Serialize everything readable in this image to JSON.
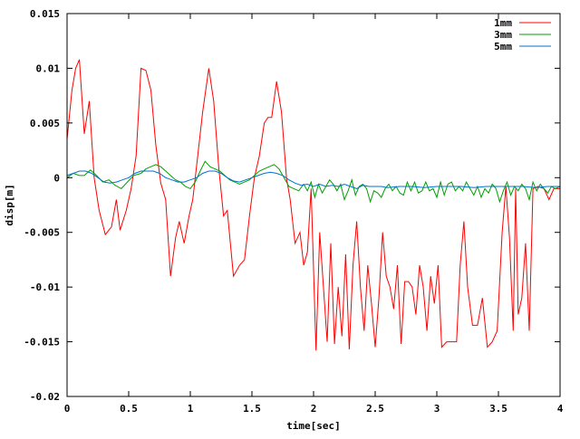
{
  "chart_data": {
    "type": "line",
    "title": "",
    "xlabel": "time[sec]",
    "ylabel": "disp[m]",
    "xlim": [
      0,
      4
    ],
    "ylim": [
      -0.02,
      0.015
    ],
    "grid": false,
    "legend_placement": "top-right",
    "x_ticks": [
      0,
      0.5,
      1,
      1.5,
      2,
      2.5,
      3,
      3.5,
      4
    ],
    "x_tick_labels": [
      "0",
      "0.5",
      "1",
      "1.5",
      "2",
      "2.5",
      "3",
      "3.5",
      "4"
    ],
    "y_ticks": [
      -0.02,
      -0.015,
      -0.01,
      -0.005,
      0,
      0.005,
      0.01,
      0.015
    ],
    "y_tick_labels": [
      "-0.02",
      "-0.015",
      "-0.01",
      "-0.005",
      "0",
      "0.005",
      "0.01",
      "0.015"
    ],
    "series": [
      {
        "name": "1mm",
        "color": "#ff0000",
        "points": [
          [
            0.0,
            0.0035
          ],
          [
            0.04,
            0.008
          ],
          [
            0.07,
            0.01
          ],
          [
            0.1,
            0.0108
          ],
          [
            0.14,
            0.004
          ],
          [
            0.18,
            0.007
          ],
          [
            0.22,
            0.0
          ],
          [
            0.26,
            -0.003
          ],
          [
            0.31,
            -0.0052
          ],
          [
            0.36,
            -0.0045
          ],
          [
            0.4,
            -0.002
          ],
          [
            0.43,
            -0.0048
          ],
          [
            0.48,
            -0.003
          ],
          [
            0.52,
            -0.001
          ],
          [
            0.56,
            0.002
          ],
          [
            0.6,
            0.01
          ],
          [
            0.64,
            0.0098
          ],
          [
            0.68,
            0.008
          ],
          [
            0.72,
            0.003
          ],
          [
            0.76,
            -0.0005
          ],
          [
            0.8,
            -0.002
          ],
          [
            0.84,
            -0.009
          ],
          [
            0.88,
            -0.0055
          ],
          [
            0.91,
            -0.004
          ],
          [
            0.95,
            -0.006
          ],
          [
            0.99,
            -0.0035
          ],
          [
            1.02,
            -0.002
          ],
          [
            1.06,
            0.002
          ],
          [
            1.1,
            0.006
          ],
          [
            1.15,
            0.01
          ],
          [
            1.19,
            0.007
          ],
          [
            1.23,
            0.001
          ],
          [
            1.27,
            -0.0035
          ],
          [
            1.3,
            -0.003
          ],
          [
            1.35,
            -0.009
          ],
          [
            1.4,
            -0.008
          ],
          [
            1.44,
            -0.0075
          ],
          [
            1.48,
            -0.0035
          ],
          [
            1.52,
            0.0
          ],
          [
            1.56,
            0.002
          ],
          [
            1.6,
            0.005
          ],
          [
            1.63,
            0.0055
          ],
          [
            1.66,
            0.0055
          ],
          [
            1.7,
            0.0088
          ],
          [
            1.74,
            0.006
          ],
          [
            1.78,
            0.0
          ],
          [
            1.81,
            -0.002
          ],
          [
            1.85,
            -0.006
          ],
          [
            1.89,
            -0.005
          ],
          [
            1.92,
            -0.008
          ],
          [
            1.95,
            -0.0068
          ],
          [
            1.98,
            -0.001
          ],
          [
            2.02,
            -0.0158
          ],
          [
            2.05,
            -0.005
          ],
          [
            2.08,
            -0.01
          ],
          [
            2.11,
            -0.015
          ],
          [
            2.14,
            -0.006
          ],
          [
            2.17,
            -0.0152
          ],
          [
            2.2,
            -0.01
          ],
          [
            2.23,
            -0.0145
          ],
          [
            2.26,
            -0.007
          ],
          [
            2.29,
            -0.0157
          ],
          [
            2.32,
            -0.008
          ],
          [
            2.35,
            -0.004
          ],
          [
            2.38,
            -0.01
          ],
          [
            2.41,
            -0.014
          ],
          [
            2.44,
            -0.008
          ],
          [
            2.47,
            -0.0115
          ],
          [
            2.5,
            -0.0155
          ],
          [
            2.53,
            -0.011
          ],
          [
            2.56,
            -0.005
          ],
          [
            2.59,
            -0.009
          ],
          [
            2.62,
            -0.01
          ],
          [
            2.65,
            -0.012
          ],
          [
            2.68,
            -0.008
          ],
          [
            2.71,
            -0.0152
          ],
          [
            2.74,
            -0.0095
          ],
          [
            2.77,
            -0.0095
          ],
          [
            2.8,
            -0.01
          ],
          [
            2.83,
            -0.0125
          ],
          [
            2.86,
            -0.008
          ],
          [
            2.89,
            -0.01
          ],
          [
            2.92,
            -0.014
          ],
          [
            2.95,
            -0.009
          ],
          [
            2.98,
            -0.0115
          ],
          [
            3.01,
            -0.008
          ],
          [
            3.04,
            -0.0155
          ],
          [
            3.08,
            -0.015
          ],
          [
            3.12,
            -0.015
          ],
          [
            3.16,
            -0.015
          ],
          [
            3.19,
            -0.008
          ],
          [
            3.22,
            -0.004
          ],
          [
            3.25,
            -0.01
          ],
          [
            3.29,
            -0.0135
          ],
          [
            3.33,
            -0.0135
          ],
          [
            3.37,
            -0.011
          ],
          [
            3.41,
            -0.0155
          ],
          [
            3.45,
            -0.015
          ],
          [
            3.49,
            -0.014
          ],
          [
            3.53,
            -0.005
          ],
          [
            3.56,
            -0.0008
          ],
          [
            3.59,
            -0.0055
          ],
          [
            3.62,
            -0.014
          ],
          [
            3.64,
            -0.001
          ],
          [
            3.66,
            -0.0125
          ],
          [
            3.69,
            -0.011
          ],
          [
            3.72,
            -0.006
          ],
          [
            3.75,
            -0.014
          ],
          [
            3.78,
            -0.001
          ],
          [
            3.82,
            -0.0008
          ],
          [
            3.87,
            -0.001
          ],
          [
            3.91,
            -0.002
          ],
          [
            3.95,
            -0.001
          ],
          [
            4.0,
            -0.001
          ]
        ]
      },
      {
        "name": "3mm",
        "color": "#00a000",
        "points": [
          [
            0.0,
            0.0
          ],
          [
            0.05,
            0.0004
          ],
          [
            0.1,
            0.0002
          ],
          [
            0.14,
            0.0002
          ],
          [
            0.19,
            0.0007
          ],
          [
            0.24,
            0.0002
          ],
          [
            0.29,
            -0.0004
          ],
          [
            0.34,
            -0.0002
          ],
          [
            0.39,
            -0.0007
          ],
          [
            0.44,
            -0.001
          ],
          [
            0.49,
            -0.0004
          ],
          [
            0.54,
            0.0002
          ],
          [
            0.6,
            0.0004
          ],
          [
            0.64,
            0.0008
          ],
          [
            0.68,
            0.001
          ],
          [
            0.72,
            0.0012
          ],
          [
            0.76,
            0.001
          ],
          [
            0.8,
            0.0006
          ],
          [
            0.84,
            0.0002
          ],
          [
            0.88,
            -0.0002
          ],
          [
            0.92,
            -0.0004
          ],
          [
            0.96,
            -0.0008
          ],
          [
            1.0,
            -0.001
          ],
          [
            1.04,
            -0.0004
          ],
          [
            1.08,
            0.0006
          ],
          [
            1.12,
            0.0015
          ],
          [
            1.16,
            0.001
          ],
          [
            1.2,
            0.0008
          ],
          [
            1.24,
            0.0006
          ],
          [
            1.28,
            0.0002
          ],
          [
            1.32,
            -0.0002
          ],
          [
            1.36,
            -0.0004
          ],
          [
            1.4,
            -0.0006
          ],
          [
            1.44,
            -0.0004
          ],
          [
            1.48,
            -0.0002
          ],
          [
            1.52,
            0.0002
          ],
          [
            1.56,
            0.0006
          ],
          [
            1.6,
            0.0008
          ],
          [
            1.64,
            0.001
          ],
          [
            1.68,
            0.0012
          ],
          [
            1.72,
            0.0008
          ],
          [
            1.76,
            0.0
          ],
          [
            1.8,
            -0.0008
          ],
          [
            1.84,
            -0.001
          ],
          [
            1.88,
            -0.0012
          ],
          [
            1.92,
            -0.0006
          ],
          [
            1.95,
            -0.0012
          ],
          [
            1.98,
            -0.0004
          ],
          [
            2.01,
            -0.0018
          ],
          [
            2.04,
            -0.0006
          ],
          [
            2.07,
            -0.0014
          ],
          [
            2.1,
            -0.0008
          ],
          [
            2.13,
            -0.0002
          ],
          [
            2.16,
            -0.0006
          ],
          [
            2.19,
            -0.0012
          ],
          [
            2.22,
            -0.0006
          ],
          [
            2.25,
            -0.002
          ],
          [
            2.28,
            -0.0012
          ],
          [
            2.31,
            -0.0002
          ],
          [
            2.34,
            -0.0016
          ],
          [
            2.37,
            -0.0008
          ],
          [
            2.4,
            -0.0006
          ],
          [
            2.43,
            -0.001
          ],
          [
            2.46,
            -0.0022
          ],
          [
            2.49,
            -0.0012
          ],
          [
            2.52,
            -0.0014
          ],
          [
            2.55,
            -0.0018
          ],
          [
            2.58,
            -0.001
          ],
          [
            2.61,
            -0.0006
          ],
          [
            2.64,
            -0.0012
          ],
          [
            2.67,
            -0.0008
          ],
          [
            2.7,
            -0.0014
          ],
          [
            2.73,
            -0.0016
          ],
          [
            2.76,
            -0.0004
          ],
          [
            2.79,
            -0.0012
          ],
          [
            2.82,
            -0.0004
          ],
          [
            2.85,
            -0.0014
          ],
          [
            2.88,
            -0.0012
          ],
          [
            2.91,
            -0.0004
          ],
          [
            2.94,
            -0.0012
          ],
          [
            2.97,
            -0.001
          ],
          [
            3.0,
            -0.0018
          ],
          [
            3.03,
            -0.0004
          ],
          [
            3.06,
            -0.0016
          ],
          [
            3.09,
            -0.0006
          ],
          [
            3.12,
            -0.0004
          ],
          [
            3.15,
            -0.0012
          ],
          [
            3.18,
            -0.0008
          ],
          [
            3.21,
            -0.0012
          ],
          [
            3.24,
            -0.0004
          ],
          [
            3.27,
            -0.001
          ],
          [
            3.3,
            -0.0016
          ],
          [
            3.33,
            -0.0008
          ],
          [
            3.36,
            -0.0018
          ],
          [
            3.39,
            -0.001
          ],
          [
            3.42,
            -0.0014
          ],
          [
            3.45,
            -0.0006
          ],
          [
            3.48,
            -0.001
          ],
          [
            3.51,
            -0.0022
          ],
          [
            3.54,
            -0.0012
          ],
          [
            3.57,
            -0.0004
          ],
          [
            3.6,
            -0.0016
          ],
          [
            3.63,
            -0.0008
          ],
          [
            3.66,
            -0.0012
          ],
          [
            3.69,
            -0.0006
          ],
          [
            3.72,
            -0.001
          ],
          [
            3.75,
            -0.002
          ],
          [
            3.78,
            -0.0004
          ],
          [
            3.81,
            -0.0012
          ],
          [
            3.84,
            -0.0006
          ],
          [
            3.87,
            -0.001
          ],
          [
            3.9,
            -0.0014
          ],
          [
            3.93,
            -0.0008
          ],
          [
            3.96,
            -0.001
          ],
          [
            4.0,
            -0.0008
          ]
        ]
      },
      {
        "name": "5mm",
        "color": "#0070d0",
        "points": [
          [
            0.0,
            0.0002
          ],
          [
            0.05,
            0.0004
          ],
          [
            0.1,
            0.0006
          ],
          [
            0.15,
            0.0006
          ],
          [
            0.2,
            0.0004
          ],
          [
            0.25,
            0.0
          ],
          [
            0.3,
            -0.0004
          ],
          [
            0.35,
            -0.0005
          ],
          [
            0.4,
            -0.0004
          ],
          [
            0.45,
            -0.0002
          ],
          [
            0.5,
            0.0
          ],
          [
            0.55,
            0.0004
          ],
          [
            0.6,
            0.0006
          ],
          [
            0.65,
            0.0006
          ],
          [
            0.7,
            0.0006
          ],
          [
            0.75,
            0.0004
          ],
          [
            0.8,
            0.0
          ],
          [
            0.85,
            -0.0002
          ],
          [
            0.9,
            -0.0004
          ],
          [
            0.95,
            -0.0004
          ],
          [
            1.0,
            -0.0002
          ],
          [
            1.05,
            0.0
          ],
          [
            1.1,
            0.0004
          ],
          [
            1.15,
            0.0006
          ],
          [
            1.2,
            0.0006
          ],
          [
            1.25,
            0.0004
          ],
          [
            1.3,
            0.0
          ],
          [
            1.35,
            -0.0003
          ],
          [
            1.4,
            -0.0004
          ],
          [
            1.45,
            -0.0002
          ],
          [
            1.5,
            0.0
          ],
          [
            1.55,
            0.0002
          ],
          [
            1.6,
            0.0004
          ],
          [
            1.65,
            0.0005
          ],
          [
            1.7,
            0.0004
          ],
          [
            1.75,
            0.0002
          ],
          [
            1.8,
            -0.0002
          ],
          [
            1.85,
            -0.0005
          ],
          [
            1.9,
            -0.0007
          ],
          [
            1.95,
            -0.0006
          ],
          [
            2.0,
            -0.0008
          ],
          [
            2.05,
            -0.0006
          ],
          [
            2.1,
            -0.0008
          ],
          [
            2.15,
            -0.0007
          ],
          [
            2.2,
            -0.0008
          ],
          [
            2.25,
            -0.0006
          ],
          [
            2.3,
            -0.0008
          ],
          [
            2.35,
            -0.001
          ],
          [
            2.4,
            -0.0007
          ],
          [
            2.45,
            -0.0008
          ],
          [
            2.5,
            -0.0008
          ],
          [
            2.55,
            -0.0008
          ],
          [
            2.6,
            -0.0009
          ],
          [
            2.7,
            -0.0008
          ],
          [
            2.8,
            -0.0008
          ],
          [
            2.9,
            -0.0009
          ],
          [
            3.0,
            -0.0008
          ],
          [
            3.1,
            -0.0008
          ],
          [
            3.2,
            -0.0008
          ],
          [
            3.3,
            -0.0009
          ],
          [
            3.4,
            -0.0008
          ],
          [
            3.5,
            -0.0008
          ],
          [
            3.6,
            -0.0008
          ],
          [
            3.7,
            -0.0008
          ],
          [
            3.8,
            -0.0009
          ],
          [
            3.9,
            -0.0008
          ],
          [
            4.0,
            -0.0008
          ]
        ]
      }
    ]
  }
}
